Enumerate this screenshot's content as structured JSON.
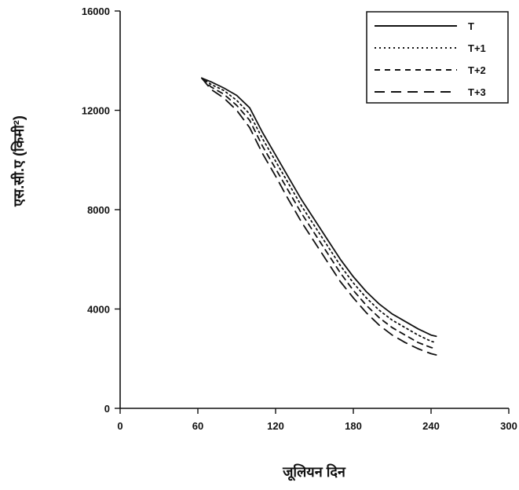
{
  "chart_data": {
    "type": "line",
    "title": "",
    "xlabel": "जूलियन दिन",
    "ylabel": "एस.सी.ए (किमी²)",
    "xlim": [
      0,
      300
    ],
    "ylim": [
      0,
      16000
    ],
    "xticks": [
      0,
      60,
      120,
      180,
      240,
      300
    ],
    "yticks": [
      0,
      4000,
      8000,
      12000,
      16000
    ],
    "xtick_labels": [
      "0",
      "60",
      "120",
      "180",
      "240",
      "300"
    ],
    "ytick_labels": [
      "0",
      "4000",
      "8000",
      "12000",
      "16000"
    ],
    "grid": false,
    "legend_position": "top-right",
    "x": [
      63,
      70,
      80,
      90,
      100,
      110,
      120,
      130,
      140,
      150,
      160,
      170,
      180,
      190,
      200,
      210,
      220,
      230,
      240,
      244
    ],
    "series": [
      {
        "name": "T",
        "style": "solid",
        "values": [
          13300,
          13150,
          12900,
          12600,
          12100,
          11100,
          10200,
          9300,
          8400,
          7600,
          6800,
          6000,
          5300,
          4700,
          4200,
          3800,
          3500,
          3200,
          2950,
          2900
        ]
      },
      {
        "name": "T+1",
        "style": "dotted",
        "values": [
          13300,
          13050,
          12800,
          12400,
          11850,
          10850,
          9950,
          9050,
          8150,
          7350,
          6550,
          5750,
          5050,
          4450,
          3950,
          3550,
          3250,
          2950,
          2700,
          2650
        ]
      },
      {
        "name": "T+2",
        "style": "dashed",
        "values": [
          13300,
          12950,
          12650,
          12200,
          11600,
          10550,
          9650,
          8750,
          7850,
          7050,
          6250,
          5450,
          4750,
          4150,
          3650,
          3250,
          2950,
          2650,
          2450,
          2400
        ]
      },
      {
        "name": "T+3",
        "style": "longdash",
        "values": [
          13300,
          12850,
          12500,
          12000,
          11300,
          10250,
          9350,
          8400,
          7500,
          6700,
          5900,
          5100,
          4450,
          3850,
          3350,
          2950,
          2650,
          2400,
          2200,
          2150
        ]
      }
    ]
  }
}
